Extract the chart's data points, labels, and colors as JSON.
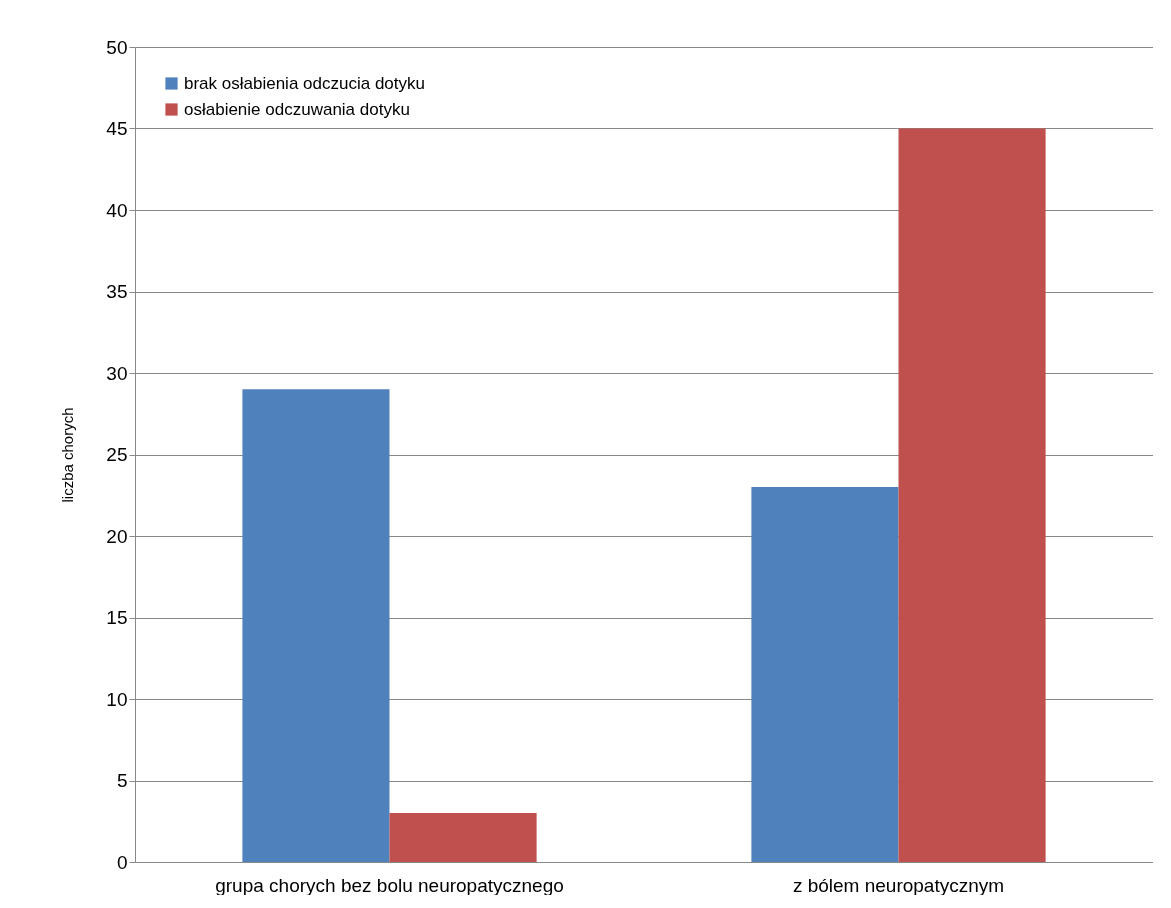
{
  "chart_data": {
    "type": "bar",
    "ylabel": "liczba chorych",
    "categories": [
      "grupa chorych bez bolu neuropatycznego",
      "z bólem neuropatycznym"
    ],
    "series": [
      {
        "name": "brak osłabienia odczucia dotyku",
        "color": "#4f81bd",
        "values": [
          29,
          23
        ]
      },
      {
        "name": "osłabienie odczuwania dotyku",
        "color": "#c0504d",
        "values": [
          3,
          45
        ]
      }
    ],
    "ylim": [
      0,
      50
    ],
    "yticks": [
      0,
      5,
      10,
      15,
      20,
      25,
      30,
      35,
      40,
      45,
      50
    ],
    "grid": "y",
    "legend": "top left"
  }
}
